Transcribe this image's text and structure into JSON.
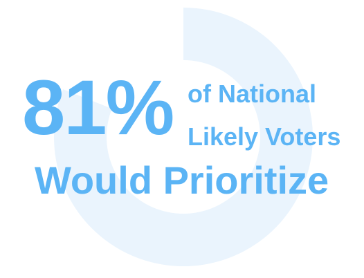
{
  "headline": {
    "percent": "81%",
    "line1": "of National",
    "line2": "Likely Voters",
    "line3": "Would Prioritize"
  },
  "ring": {
    "value_percent": 81
  },
  "colors": {
    "text": "#5BB4F5",
    "ring": "#EAF4FD",
    "background": "#FFFFFF"
  }
}
